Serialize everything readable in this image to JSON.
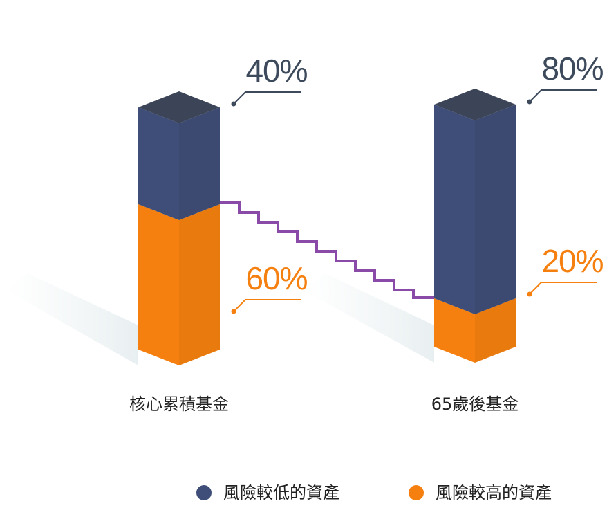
{
  "chart_data": {
    "type": "bar",
    "stacked": true,
    "categories": [
      "核心累積基金",
      "65歲後基金"
    ],
    "series": [
      {
        "name": "風險較低的資產",
        "color": "#3f4e78",
        "values": [
          40,
          80
        ],
        "value_labels": [
          "40%",
          "80%"
        ]
      },
      {
        "name": "風險較高的資產",
        "color": "#f5800f",
        "values": [
          60,
          20
        ],
        "value_labels": [
          "60%",
          "20%"
        ]
      }
    ]
  }
}
